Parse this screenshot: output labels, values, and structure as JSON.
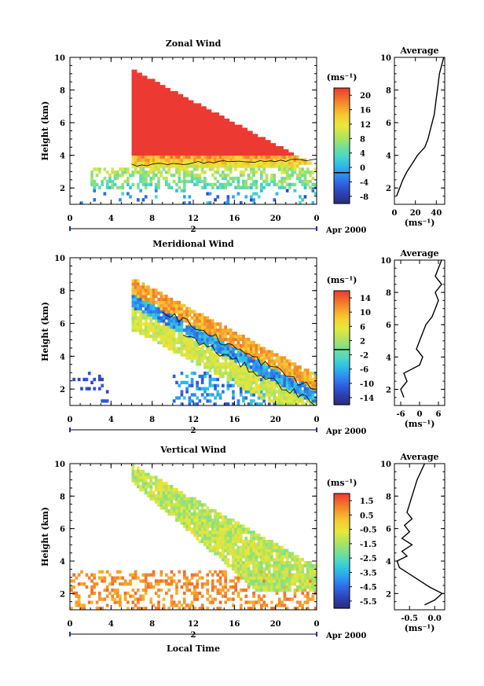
{
  "chart_data": [
    {
      "type": "heatmap",
      "title": "Zonal Wind",
      "ylabel": "Height (km)",
      "xlabel": "",
      "xlim": [
        0,
        24
      ],
      "ylim": [
        1,
        10
      ],
      "x_ticks": [
        "0",
        "4",
        "8",
        "12",
        "16",
        "20",
        "0"
      ],
      "y_ticks": [
        "2",
        "4",
        "6",
        "8",
        "10"
      ],
      "date_label": "Apr 2000",
      "day_label": "2",
      "colorbar": {
        "unit": "(ms⁻¹)",
        "range": [
          -8,
          22
        ],
        "tick_labels": [
          "20",
          "16",
          "12",
          "8",
          "4",
          "0",
          "-4",
          "-8"
        ],
        "contour_level": 0
      },
      "average_profile": {
        "title": "Average",
        "xlabel": "(ms⁻¹)",
        "x_ticks": [
          "0",
          "20",
          "40"
        ],
        "xlim": [
          0,
          48
        ],
        "heights": [
          1.5,
          2.0,
          2.5,
          3.0,
          3.5,
          4.0,
          4.5,
          5.0,
          5.5,
          6.0,
          6.5,
          7.0,
          7.5,
          8.0,
          8.5,
          9.0,
          9.5,
          10.0
        ],
        "values": [
          2,
          5,
          8,
          12,
          17,
          22,
          29,
          32,
          34,
          36,
          38,
          39,
          40,
          41,
          42,
          43,
          45,
          47
        ]
      }
    },
    {
      "type": "heatmap",
      "title": "Meridional Wind",
      "ylabel": "Height (km)",
      "xlabel": "",
      "xlim": [
        0,
        24
      ],
      "ylim": [
        1,
        10
      ],
      "x_ticks": [
        "0",
        "4",
        "8",
        "12",
        "16",
        "20",
        "0"
      ],
      "y_ticks": [
        "2",
        "4",
        "6",
        "8",
        "10"
      ],
      "date_label": "Apr 2000",
      "day_label": "2",
      "colorbar": {
        "unit": "(ms⁻¹)",
        "range": [
          -15,
          16
        ],
        "tick_labels": [
          "14",
          "10",
          "6",
          "2",
          "-2",
          "-6",
          "-10",
          "-14"
        ],
        "contour_level": 0
      },
      "average_profile": {
        "title": "Average",
        "xlabel": "(ms⁻¹)",
        "x_ticks": [
          "-6",
          "0",
          "6"
        ],
        "xlim": [
          -8,
          8
        ],
        "heights": [
          1.5,
          2.0,
          2.5,
          3.0,
          3.5,
          4.0,
          4.5,
          5.0,
          5.5,
          6.0,
          6.5,
          7.0,
          7.5,
          8.0,
          8.5,
          9.0,
          9.5,
          10.0
        ],
        "values": [
          -5,
          -6,
          -4,
          -5,
          0,
          1,
          -1,
          0,
          1,
          2,
          4,
          5,
          6,
          5,
          7,
          5,
          6,
          7
        ]
      }
    },
    {
      "type": "heatmap",
      "title": "Vertical Wind",
      "ylabel": "Height (km)",
      "xlabel": "Local Time",
      "xlim": [
        0,
        24
      ],
      "ylim": [
        1,
        10
      ],
      "x_ticks": [
        "0",
        "4",
        "8",
        "12",
        "16",
        "20",
        "0"
      ],
      "y_ticks": [
        "2",
        "4",
        "6",
        "8",
        "10"
      ],
      "date_label": "Apr 2000",
      "day_label": "2",
      "colorbar": {
        "unit": "(ms⁻¹)",
        "range": [
          -6.5,
          2.5
        ],
        "tick_labels": [
          "1.5",
          "0.5",
          "-0.5",
          "-1.5",
          "-2.5",
          "-3.5",
          "-4.5",
          "-5.5"
        ]
      },
      "average_profile": {
        "title": "Average",
        "xlabel": "(ms⁻¹)",
        "x_ticks": [
          "-0.5",
          "0.0"
        ],
        "xlim": [
          -0.8,
          0.2
        ],
        "heights": [
          1.3,
          1.6,
          2.0,
          2.4,
          3.0,
          3.6,
          4.0,
          4.3,
          4.6,
          5.0,
          5.4,
          5.8,
          6.2,
          6.6,
          7.0,
          7.5,
          8.0,
          9.0,
          10.0
        ],
        "values": [
          -0.2,
          0.0,
          0.15,
          -0.1,
          -0.4,
          -0.7,
          -0.75,
          -0.55,
          -0.65,
          -0.45,
          -0.65,
          -0.5,
          -0.6,
          -0.45,
          -0.55,
          -0.5,
          -0.45,
          -0.35,
          -0.2
        ]
      }
    }
  ]
}
